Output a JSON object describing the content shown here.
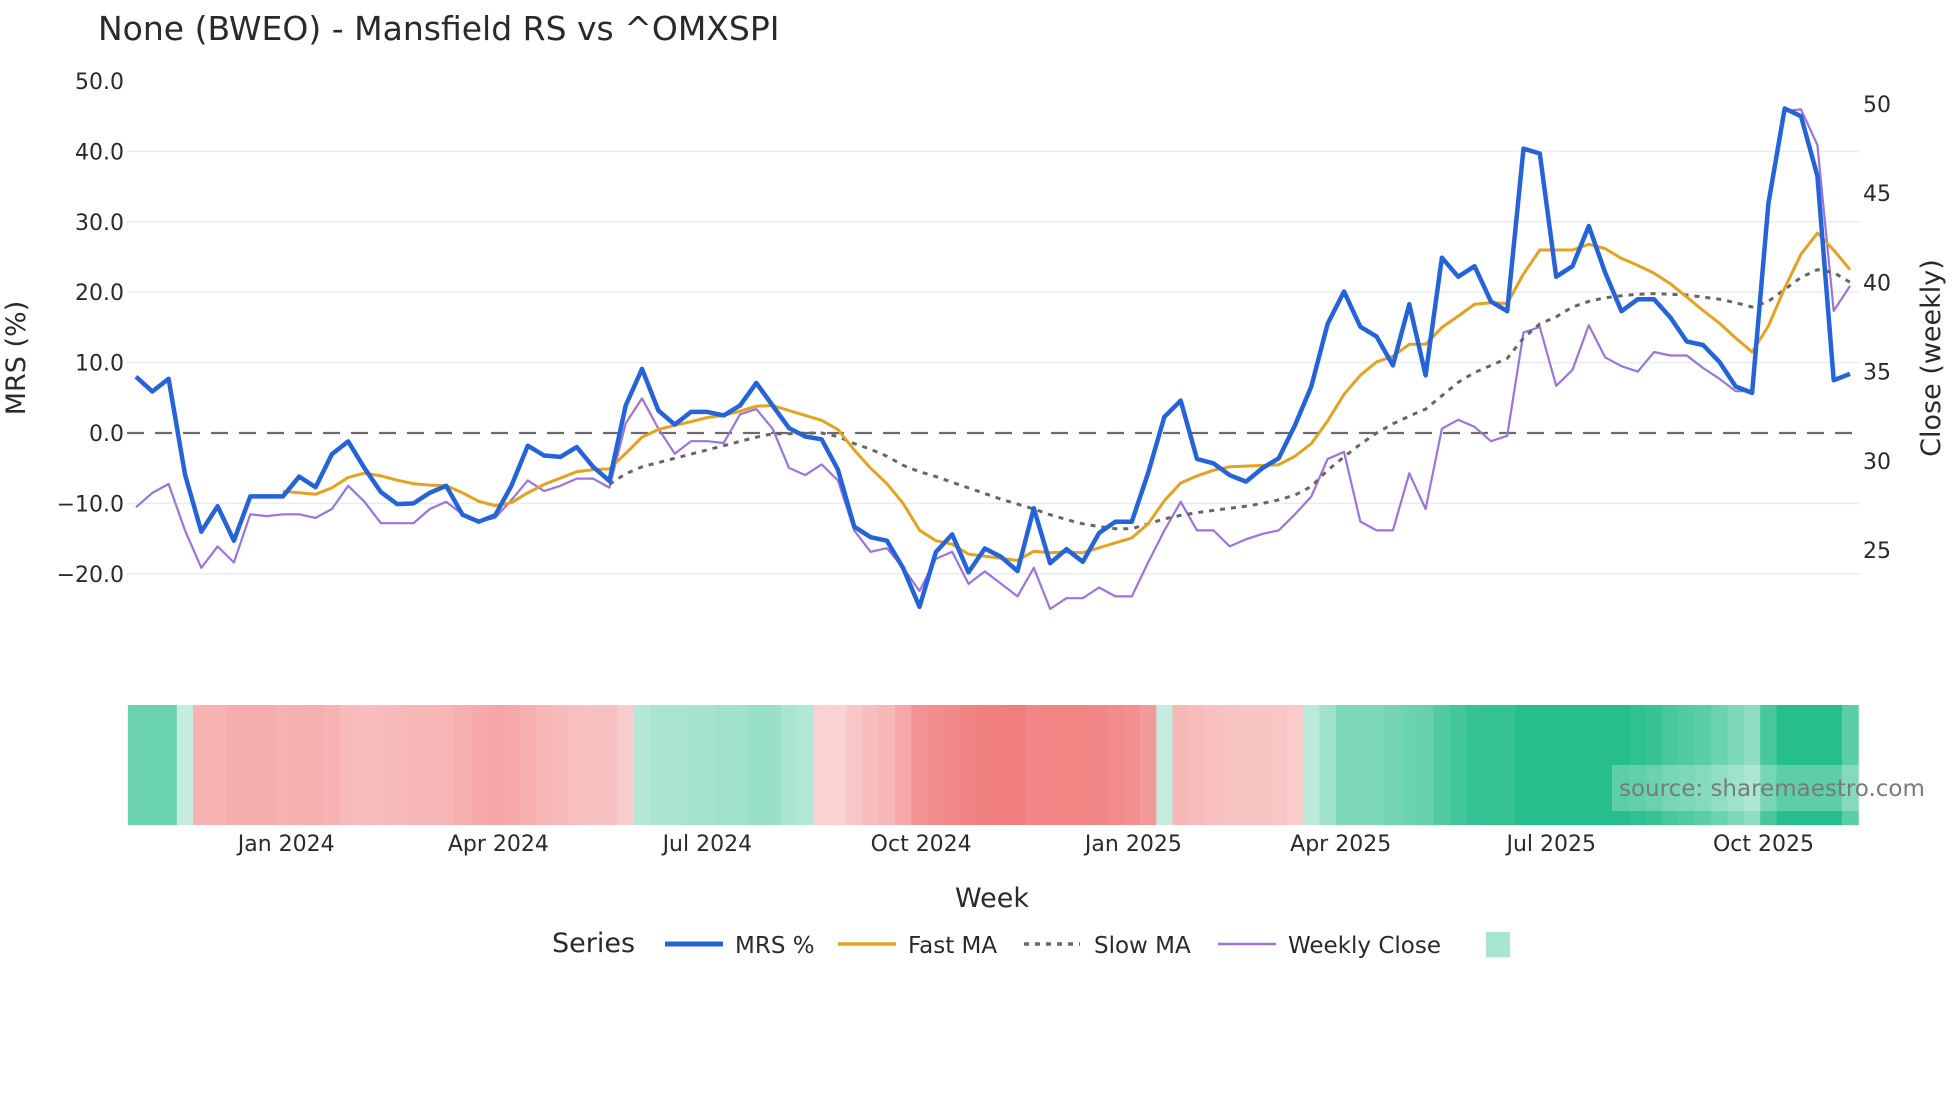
{
  "chart_data": {
    "type": "line",
    "title": "None (BWEO) - Mansfield RS vs ^OMXSPI",
    "xlabel": "Week",
    "ylabel": "MRS (%)",
    "y2label": "Close (weekly)",
    "ylim": [
      -27.5,
      50
    ],
    "y2lim": [
      20.7,
      51.3
    ],
    "y_ticks": [
      50,
      40,
      30,
      20,
      10,
      0,
      -10,
      -20
    ],
    "y_tick_labels": [
      "50.0",
      "40.0",
      "30.0",
      "20.0",
      "10.0",
      "0.0",
      "−10.0",
      "−20.0"
    ],
    "y2_ticks": [
      50,
      45,
      40,
      35,
      30,
      25
    ],
    "y2_tick_labels": [
      "50",
      "45",
      "40",
      "35",
      "30",
      "25"
    ],
    "x_ticks": [
      {
        "label": "Jan 2024",
        "week_index": 9.2
      },
      {
        "label": "Apr 2024",
        "week_index": 22.2
      },
      {
        "label": "Jul 2024",
        "week_index": 35.0
      },
      {
        "label": "Oct 2024",
        "week_index": 48.1
      },
      {
        "label": "Jan 2025",
        "week_index": 61.1
      },
      {
        "label": "Apr 2025",
        "week_index": 73.8
      },
      {
        "label": "Jul 2025",
        "week_index": 86.7
      },
      {
        "label": "Oct 2025",
        "week_index": 99.7
      }
    ],
    "grid": true,
    "zero_line": 0,
    "legend_title": "Series",
    "legend_position": "bottom-center",
    "series": [
      {
        "name": "MRS %",
        "axis": "left",
        "color": "#2563d9",
        "start_index": 0,
        "values": [
          8,
          5.9,
          7.7,
          -5.9,
          -14,
          -10.4,
          -15.3,
          -9,
          -9,
          -9,
          -6.2,
          -7.7,
          -3,
          -1.2,
          -5,
          -8.4,
          -10.1,
          -10,
          -8.5,
          -7.5,
          -11.6,
          -12.6,
          -11.7,
          -7.5,
          -1.8,
          -3.2,
          -3.4,
          -2,
          -4.8,
          -6.8,
          3.9,
          9.1,
          3.2,
          1.2,
          3,
          3,
          2.5,
          3.9,
          7.1,
          3.9,
          0.7,
          -0.5,
          -0.9,
          -5.2,
          -13.3,
          -14.8,
          -15.3,
          -19.2,
          -24.7,
          -16.9,
          -14.4,
          -19.8,
          -16.4,
          -17.6,
          -19.6,
          -10.7,
          -18.5,
          -16.5,
          -18.3,
          -14.2,
          -12.6,
          -12.6,
          -5.7,
          2.3,
          4.6,
          -3.7,
          -4.3,
          -6,
          -6.9,
          -5,
          -3.6,
          1.1,
          6.6,
          15.5,
          20.1,
          15.1,
          13.7,
          9.6,
          18.3,
          8.2,
          24.9,
          22.2,
          23.7,
          18.7,
          17.3,
          40.4,
          39.7,
          22.2,
          23.7,
          29.4,
          22.8,
          17.3,
          19,
          19,
          16.4,
          13,
          12.5,
          10.1,
          6.6,
          5.7,
          32.6,
          46.1,
          45,
          36.5,
          7.5,
          8.4
        ]
      },
      {
        "name": "Fast MA",
        "axis": "left",
        "color": "#e5a11f",
        "start_index": 9,
        "values": [
          -8.3,
          -8.5,
          -8.7,
          -7.8,
          -6.3,
          -5.7,
          -6.1,
          -6.7,
          -7.2,
          -7.4,
          -7.5,
          -8.5,
          -9.7,
          -10.3,
          -9.9,
          -8.5,
          -7.3,
          -6.4,
          -5.5,
          -5.2,
          -5.1,
          -2.9,
          -0.6,
          0.5,
          1.1,
          1.6,
          2.2,
          2.5,
          3.1,
          3.8,
          3.9,
          3.2,
          2.5,
          1.8,
          0.5,
          -2.4,
          -5.0,
          -7.2,
          -10.0,
          -13.8,
          -15.3,
          -15.8,
          -17.2,
          -17.5,
          -17.8,
          -18.1,
          -16.8,
          -17.0,
          -16.9,
          -17.0,
          -16.3,
          -15.6,
          -14.9,
          -12.9,
          -9.6,
          -7.1,
          -6.1,
          -5.3,
          -4.8,
          -4.7,
          -4.6,
          -4.5,
          -3.3,
          -1.5,
          1.7,
          5.5,
          8.2,
          10.1,
          10.9,
          12.6,
          12.6,
          15.0,
          16.6,
          18.3,
          18.5,
          18.4,
          22.6,
          26.0,
          26.0,
          26.0,
          26.8,
          26.2,
          24.8,
          23.8,
          22.7,
          21.2,
          19.3,
          17.4,
          15.6,
          13.5,
          11.5,
          15.2,
          20.6,
          25.4,
          28.4,
          26.0,
          23.2
        ]
      },
      {
        "name": "Slow MA",
        "axis": "left",
        "color": "#666666",
        "start_index": 29,
        "values": [
          -7.3,
          -5.8,
          -4.8,
          -4.2,
          -3.6,
          -3.0,
          -2.4,
          -1.8,
          -1.2,
          -0.6,
          -0.1,
          -0.1,
          0,
          0,
          -0.5,
          -1.5,
          -2.3,
          -3.3,
          -4.6,
          -5.5,
          -6.2,
          -7.0,
          -7.8,
          -8.6,
          -9.4,
          -10.1,
          -10.8,
          -11.6,
          -12.3,
          -12.9,
          -13.3,
          -13.6,
          -13.6,
          -12.9,
          -12.2,
          -11.7,
          -11.3,
          -11.0,
          -10.7,
          -10.4,
          -10.0,
          -9.5,
          -8.8,
          -7.6,
          -5.3,
          -3.4,
          -1.6,
          0,
          1.3,
          2.4,
          3.4,
          5.3,
          7.2,
          8.6,
          9.6,
          10.6,
          13.5,
          15.5,
          16.5,
          17.9,
          18.7,
          19.2,
          19.5,
          19.7,
          19.8,
          19.7,
          19.6,
          19.3,
          19.0,
          18.5,
          17.9,
          18.7,
          20.4,
          22.1,
          23.2,
          22.8,
          21.4
        ]
      },
      {
        "name": "Weekly Close",
        "axis": "right",
        "color": "#9b74dd",
        "start_index": 0,
        "values": [
          27.4,
          28.2,
          28.7,
          26.1,
          24.0,
          25.2,
          24.3,
          27.0,
          26.9,
          27.0,
          27.0,
          26.8,
          27.3,
          28.6,
          27.7,
          26.5,
          26.5,
          26.5,
          27.3,
          27.7,
          27.0,
          26.6,
          26.8,
          27.8,
          28.9,
          28.3,
          28.6,
          29.0,
          29.0,
          28.5,
          32.1,
          33.5,
          31.8,
          30.4,
          31.1,
          31.1,
          31.0,
          32.6,
          32.9,
          31.8,
          29.6,
          29.2,
          29.8,
          28.9,
          26.1,
          24.9,
          25.1,
          24.0,
          22.7,
          24.5,
          24.9,
          23.1,
          23.8,
          23.1,
          22.4,
          24.0,
          21.7,
          22.3,
          22.3,
          22.9,
          22.4,
          22.4,
          24.3,
          26.1,
          27.7,
          26.1,
          26.1,
          25.2,
          25.6,
          25.9,
          26.1,
          27.0,
          28.0,
          30.1,
          30.5,
          26.6,
          26.1,
          26.1,
          29.3,
          27.3,
          31.8,
          32.3,
          31.9,
          31.1,
          31.4,
          37.2,
          37.5,
          34.2,
          35.1,
          37.6,
          35.8,
          35.3,
          35.0,
          36.1,
          35.9,
          35.9,
          35.2,
          34.6,
          33.9,
          33.9,
          44.6,
          49.6,
          49.7,
          47.7,
          38.4,
          39.8
        ]
      }
    ],
    "heat": {
      "name": "Regime",
      "colors": {
        "neg_light": "#fbdcdc",
        "neg_dark": "#f07474",
        "pos_light": "#d6f2e8",
        "pos_dark": "#26be8c"
      },
      "values": [
        12,
        12,
        12,
        2,
        -8,
        -8,
        -9,
        -9,
        -9,
        -8.3,
        -8.5,
        -8.7,
        -7.8,
        -6.3,
        -5.7,
        -6.1,
        -6.7,
        -7.2,
        -7.4,
        -7.5,
        -8.5,
        -9.7,
        -10.3,
        -9.9,
        -8.5,
        -7.3,
        -6.4,
        -5.5,
        -5.2,
        -5.1,
        -2.9,
        4,
        5,
        5,
        5.5,
        5.5,
        6,
        6,
        7,
        7,
        5,
        4,
        -2,
        -2,
        -4,
        -6,
        -7.2,
        -10.0,
        -13.8,
        -15.3,
        -15.8,
        -17.2,
        -17.5,
        -17.8,
        -18.1,
        -16.8,
        -17.0,
        -16.9,
        -17.0,
        -16.3,
        -15.6,
        -14.9,
        -12.9,
        2,
        -7.1,
        -6.1,
        -5.3,
        -4.8,
        -4.7,
        -4.6,
        -4.5,
        -3.3,
        3,
        6,
        10,
        10,
        10,
        11,
        12,
        12.6,
        15,
        16.6,
        18.3,
        18.5,
        18.4,
        24,
        26,
        26,
        24,
        26.8,
        20,
        20,
        19,
        18,
        16,
        15,
        14,
        12,
        10,
        8,
        16,
        24,
        26,
        26,
        20,
        14
      ]
    },
    "legend": [
      "MRS %",
      "Fast MA",
      "Slow MA",
      "Weekly Close"
    ],
    "source": "source: sharemaestro.com"
  }
}
